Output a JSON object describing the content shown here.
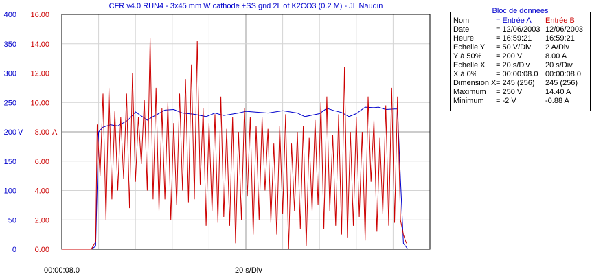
{
  "title": "CFR v4.0 RUN4 - 3x45 mm W cathode +SS grid 2L of K2CO3 (0.2 M) - JL Naudin",
  "x_start_label": "00:00:08.0",
  "x_scale_label": "20 s/Div",
  "colors": {
    "entree_a": "#0000cc",
    "entree_b": "#cc0000"
  },
  "panel": {
    "title": "Bloc de données",
    "rows": [
      {
        "label": "Nom",
        "a": "= Entrée A",
        "b": "Entrée B"
      },
      {
        "label": "Date",
        "a": "= 12/06/2003",
        "b": "12/06/2003"
      },
      {
        "label": "Heure",
        "a": "= 16:59:21",
        "b": "16:59:21"
      },
      {
        "label": "Echelle Y",
        "a": "=   50 V/Div",
        "b": "2     A/Div"
      },
      {
        "label": "Y à 50%",
        "a": "= 200 V",
        "b": "8.00 A"
      },
      {
        "label": "Echelle X",
        "a": "=   20 s/Div",
        "b": "20     s/Div"
      },
      {
        "label": "X à 0%",
        "a": "= 00:00:08.0",
        "b": "00:00:08.0"
      },
      {
        "label": "Dimension X",
        "a": "= 245 (256)",
        "b": "245 (256)"
      },
      {
        "label": "Maximum",
        "a": "=   250 V",
        "b": "14.40 A"
      },
      {
        "label": "Minimum",
        "a": "=   -2 V",
        "b": "-0.88 A"
      }
    ]
  },
  "chart_data": {
    "type": "line",
    "title": "CFR v4.0 RUN4 - 3x45 mm W cathode +SS grid 2L of K2CO3 (0.2 M) - JL Naudin",
    "xlabel": "20 s/Div",
    "x_unit": "s",
    "xlim": [
      0,
      250
    ],
    "grid": true,
    "y_axes": [
      {
        "side": "left",
        "unit": "V",
        "ticks": [
          0,
          50,
          100,
          150,
          200,
          250,
          300,
          350,
          400
        ],
        "ylim": [
          0,
          400
        ]
      },
      {
        "side": "left-inner",
        "unit": "A",
        "ticks": [
          "0.00",
          "2.00",
          "4.00",
          "6.00",
          "8.00",
          "10.00",
          "12.00",
          "14.00",
          "16.00"
        ],
        "ylim": [
          0,
          16
        ]
      }
    ],
    "series": [
      {
        "name": "Entrée A",
        "axis": "V",
        "x": [
          0,
          20,
          23,
          25,
          28,
          33,
          38,
          45,
          50,
          58,
          62,
          70,
          76,
          82,
          90,
          98,
          104,
          110,
          120,
          125,
          140,
          150,
          160,
          165,
          175,
          180,
          185,
          190,
          195,
          200,
          206,
          212,
          215,
          220,
          226,
          228,
          230,
          232,
          235
        ],
        "values": [
          0,
          0,
          5,
          200,
          208,
          212,
          210,
          220,
          234,
          220,
          226,
          237,
          238,
          232,
          230,
          226,
          232,
          228,
          232,
          235,
          232,
          236,
          232,
          226,
          231,
          240,
          236,
          233,
          226,
          231,
          242,
          241,
          242,
          238,
          239,
          239,
          120,
          10,
          0
        ]
      },
      {
        "name": "Entrée B",
        "axis": "A",
        "x": [
          0,
          20,
          23,
          24,
          26,
          28,
          30,
          32,
          34,
          36,
          38,
          40,
          42,
          44,
          46,
          48,
          50,
          52,
          54,
          56,
          58,
          60,
          62,
          64,
          66,
          68,
          70,
          72,
          74,
          76,
          78,
          80,
          82,
          84,
          86,
          88,
          90,
          92,
          94,
          96,
          98,
          100,
          102,
          104,
          106,
          108,
          110,
          112,
          114,
          116,
          118,
          120,
          122,
          124,
          126,
          128,
          130,
          132,
          134,
          136,
          138,
          140,
          142,
          144,
          146,
          148,
          150,
          152,
          154,
          156,
          158,
          160,
          162,
          164,
          166,
          168,
          170,
          172,
          174,
          176,
          178,
          180,
          182,
          184,
          186,
          188,
          190,
          192,
          194,
          196,
          198,
          200,
          202,
          204,
          206,
          208,
          210,
          212,
          214,
          216,
          218,
          220,
          222,
          224,
          226,
          228,
          230,
          232,
          234
        ],
        "values": [
          0,
          0,
          0.5,
          8.5,
          5.0,
          10.6,
          2.0,
          11.0,
          3.4,
          9.4,
          4.0,
          9.0,
          4.8,
          10.6,
          2.8,
          12.0,
          4.6,
          9.0,
          5.8,
          10.2,
          4.0,
          14.4,
          3.4,
          11.0,
          2.6,
          9.6,
          3.4,
          10.0,
          2.0,
          8.6,
          3.0,
          10.6,
          4.0,
          11.6,
          3.2,
          12.6,
          3.4,
          14.2,
          4.4,
          9.6,
          1.6,
          8.6,
          2.6,
          9.2,
          1.8,
          10.4,
          2.2,
          8.2,
          1.6,
          9.0,
          0.4,
          8.0,
          2.0,
          9.6,
          3.6,
          9.0,
          1.0,
          8.4,
          2.0,
          9.0,
          4.0,
          8.2,
          1.8,
          7.2,
          1.0,
          8.4,
          2.4,
          9.2,
          0.0,
          7.2,
          2.6,
          8.0,
          1.4,
          8.4,
          0.2,
          7.6,
          2.6,
          8.8,
          3.0,
          10.0,
          1.4,
          10.4,
          2.6,
          7.8,
          1.6,
          9.2,
          1.0,
          12.4,
          0.8,
          8.0,
          1.6,
          9.0,
          2.2,
          8.0,
          0.6,
          10.4,
          4.6,
          8.8,
          1.2,
          7.6,
          2.4,
          9.8,
          1.6,
          11.0,
          1.8,
          10.4,
          2.0,
          1.0,
          0.4
        ]
      }
    ]
  }
}
